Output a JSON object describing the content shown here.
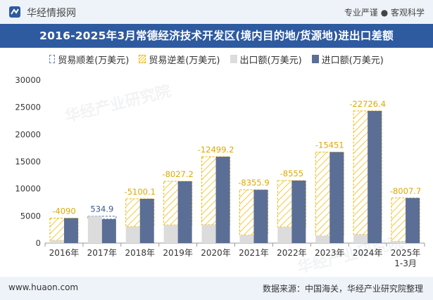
{
  "header": {
    "brand": "华经情报网",
    "tagline": "专业严谨 ● 客观科学",
    "title": "2016-2025年3月常德经济技术开发区(境内目的地/货源地)进出口差额"
  },
  "watermark": "华经产业研究院",
  "footer": {
    "url": "www.huaon.com",
    "source": "数据来源：中国海关，华经产业研究院整理"
  },
  "colors": {
    "header_bg": "#2e5aa0",
    "export": "#dcdcdc",
    "import": "#5b6e96",
    "deficit": "#f0b400",
    "surplus": "#6b86b8",
    "label_deficit": "#e0a800",
    "label_surplus": "#3d5a8a"
  },
  "chart_data": {
    "type": "bar",
    "categories": [
      "2016年",
      "2017年",
      "2018年",
      "2019年",
      "2020年",
      "2021年",
      "2022年",
      "2023年",
      "2024年",
      "2025年\n1-3月"
    ],
    "ylim": [
      0,
      30000
    ],
    "yticks": [
      "0",
      "5000",
      "10000",
      "15000",
      "20000",
      "25000",
      "30000"
    ],
    "legend": [
      "贸易顺差(万美元)",
      "贸易逆差(万美元)",
      "出口额(万美元)",
      "进口额(万美元)"
    ],
    "series": [
      {
        "name": "出口额(万美元)",
        "values": [
          500,
          4950,
          3050,
          3350,
          3400,
          1450,
          2950,
          1300,
          1600,
          300
        ]
      },
      {
        "name": "进口额(万美元)",
        "values": [
          4590,
          4415,
          8150,
          11377,
          15899,
          9806,
          11505,
          16751,
          24327,
          8308
        ]
      }
    ],
    "balance_labels": [
      "-4090",
      "534.9",
      "-5100.1",
      "-8027.2",
      "-12499.2",
      "-8355.9",
      "-8555",
      "-15451",
      "-22726.4",
      "-8007.7"
    ]
  }
}
